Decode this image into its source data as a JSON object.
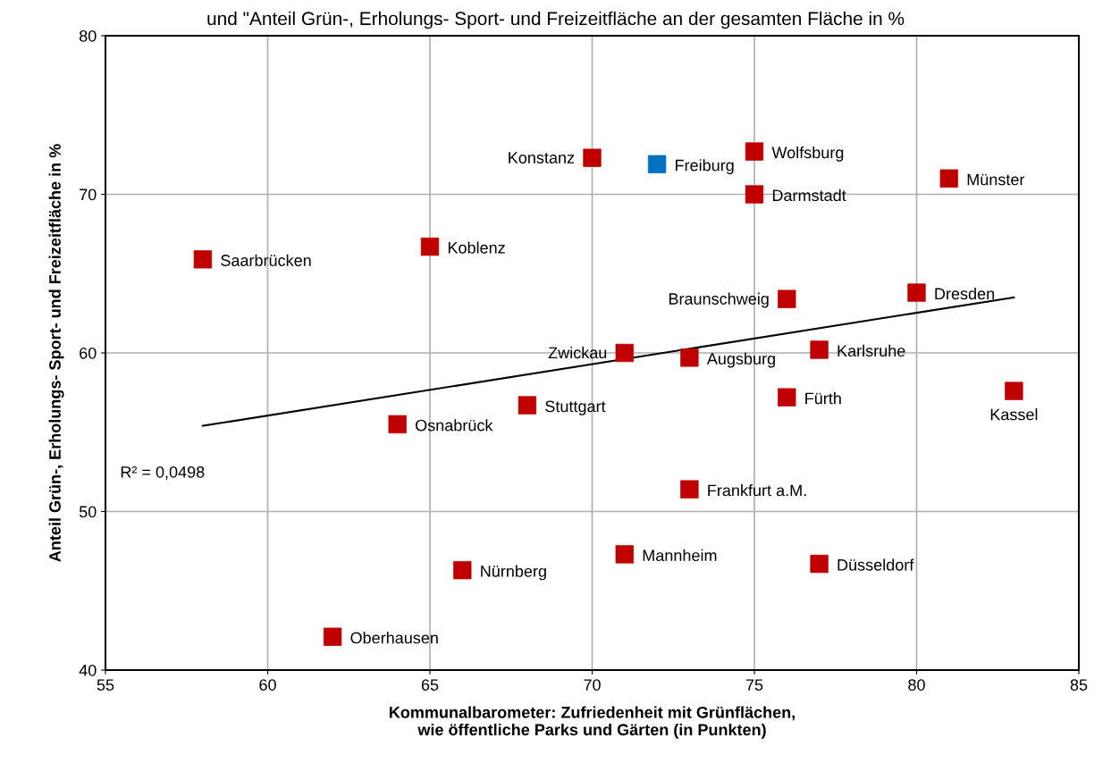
{
  "chart_data": {
    "type": "scatter",
    "title": "und \"Anteil Grün-, Erholungs- Sport- und Freizeitfläche an der gesamten Fläche in %",
    "xlabel": "Kommunalbarometer: Zufriedenheit mit Grünflächen,\nwie öffentliche Parks und Gärten (in Punkten)",
    "ylabel": "Anteil Grün-, Erholungs- Sport- und Freizeitfläche in %",
    "xlim": [
      55,
      85
    ],
    "xticks": [
      55,
      60,
      65,
      70,
      75,
      80,
      85
    ],
    "ylim": [
      40,
      80
    ],
    "yticks": [
      40,
      50,
      60,
      70,
      80
    ],
    "grid": true,
    "marker": "square",
    "series": [
      {
        "x": [
          58,
          65,
          70,
          72,
          75,
          75,
          81,
          76,
          80,
          71,
          73,
          77,
          68,
          64,
          76,
          83,
          73,
          71,
          66,
          77,
          62
        ],
        "values": [
          65.9,
          66.7,
          72.3,
          71.9,
          72.7,
          70.0,
          71.0,
          63.4,
          63.8,
          60.0,
          59.7,
          60.2,
          56.7,
          55.5,
          57.2,
          57.6,
          51.4,
          47.3,
          46.3,
          46.7,
          42.1
        ],
        "colors": [
          "#c00000",
          "#c00000",
          "#c00000",
          "#0070c0",
          "#c00000",
          "#c00000",
          "#c00000",
          "#c00000",
          "#c00000",
          "#c00000",
          "#c00000",
          "#c00000",
          "#c00000",
          "#c00000",
          "#c00000",
          "#c00000",
          "#c00000",
          "#c00000",
          "#c00000",
          "#c00000",
          "#c00000"
        ]
      },
      {
        "type": "line",
        "x": [
          58,
          83
        ],
        "values": [
          55.4,
          63.5
        ],
        "color": "#000000",
        "line_style": "solid",
        "marker": "none"
      }
    ],
    "annotations": [
      {
        "text": "Saarbrücken",
        "x": 58,
        "y": 65.9
      },
      {
        "text": "Koblenz",
        "x": 65,
        "y": 66.7
      },
      {
        "text": "Konstanz",
        "x": 70,
        "y": 72.3
      },
      {
        "text": "Freiburg",
        "x": 72,
        "y": 71.9
      },
      {
        "text": "Wolfsburg",
        "x": 75,
        "y": 72.7
      },
      {
        "text": "Darmstadt",
        "x": 75,
        "y": 70.0
      },
      {
        "text": "Münster",
        "x": 81,
        "y": 71.0
      },
      {
        "text": "Braunschweig",
        "x": 76,
        "y": 63.4
      },
      {
        "text": "Dresden",
        "x": 80,
        "y": 63.8
      },
      {
        "text": "Zwickau",
        "x": 71,
        "y": 60.0
      },
      {
        "text": "Augsburg",
        "x": 73,
        "y": 59.7
      },
      {
        "text": "Karlsruhe",
        "x": 77,
        "y": 60.2
      },
      {
        "text": "Stuttgart",
        "x": 68,
        "y": 56.7
      },
      {
        "text": "Osnabrück",
        "x": 64,
        "y": 55.5
      },
      {
        "text": "Fürth",
        "x": 76,
        "y": 57.2
      },
      {
        "text": "Kassel",
        "x": 83,
        "y": 57.6
      },
      {
        "text": "Frankfurt a.M.",
        "x": 73,
        "y": 51.4
      },
      {
        "text": "Mannheim",
        "x": 71,
        "y": 47.3
      },
      {
        "text": "Nürnberg",
        "x": 66,
        "y": 46.3
      },
      {
        "text": "Düsseldorf",
        "x": 77,
        "y": 46.7
      },
      {
        "text": "Oberhausen",
        "x": 62,
        "y": 42.1
      },
      "R² = 0,0498"
    ]
  }
}
